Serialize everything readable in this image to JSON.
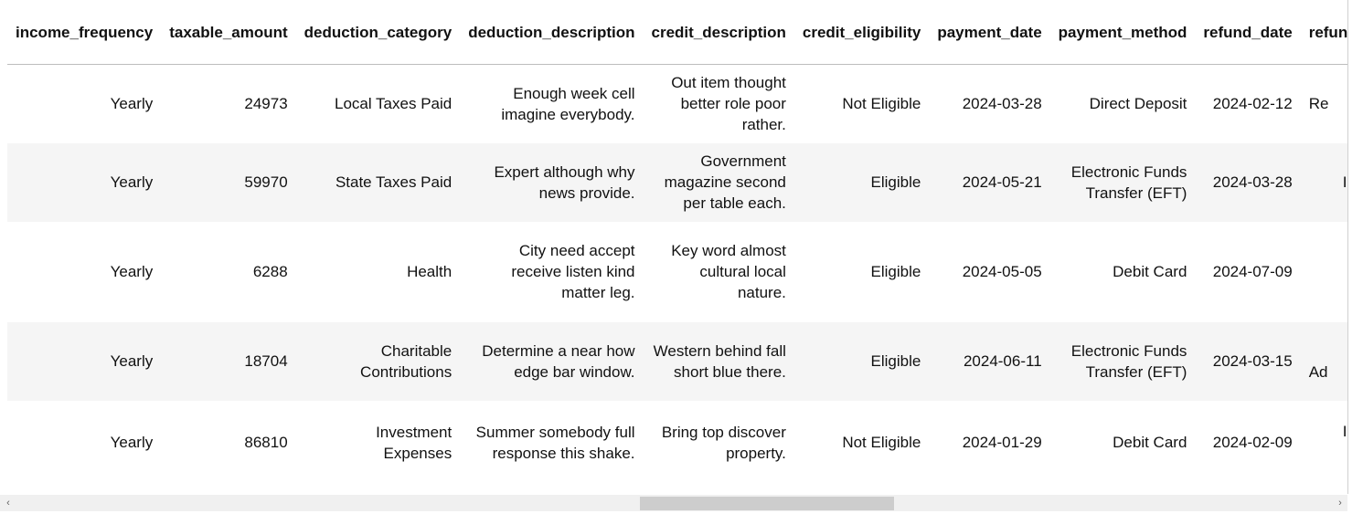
{
  "table": {
    "columns": [
      "income_frequency",
      "taxable_amount",
      "deduction_category",
      "deduction_description",
      "credit_description",
      "credit_eligibility",
      "payment_date",
      "payment_method",
      "refund_date",
      "refund_status"
    ],
    "rows": [
      [
        "Yearly",
        "24973",
        "Local Taxes Paid",
        "Enough week cell imagine everybody.",
        "Out item thought better role poor rather.",
        "Not Eligible",
        "2024-03-28",
        "Direct Deposit",
        "2024-02-12",
        "Re"
      ],
      [
        "Yearly",
        "59970",
        "State Taxes Paid",
        "Expert although why news provide.",
        "Government magazine second per table each.",
        "Eligible",
        "2024-05-21",
        "Electronic Funds Transfer (EFT)",
        "2024-03-28",
        "I"
      ],
      [
        "Yearly",
        "6288",
        "Health",
        "City need accept receive listen kind matter leg.",
        "Key word almost cultural local nature.",
        "Eligible",
        "2024-05-05",
        "Debit Card",
        "2024-07-09",
        ""
      ],
      [
        "Yearly",
        "18704",
        "Charitable Contributions",
        "Determine a near how edge bar window.",
        "Western behind fall short blue there.",
        "Eligible",
        "2024-06-11",
        "Electronic Funds Transfer (EFT)",
        "2024-03-15",
        "Ad"
      ],
      [
        "Yearly",
        "86810",
        "Investment Expenses",
        "Summer somebody full response this shake.",
        "Bring top discover property.",
        "Not Eligible",
        "2024-01-29",
        "Debit Card",
        "2024-02-09",
        "I"
      ]
    ]
  },
  "scrollbar": {
    "left_arrow": "‹",
    "right_arrow": "›"
  }
}
